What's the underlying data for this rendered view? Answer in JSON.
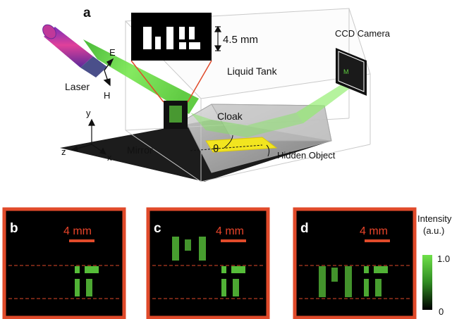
{
  "panel_a": {
    "letter": "a",
    "inset_dimension": "4.5 mm",
    "labels": {
      "camera": "CCD Camera",
      "tank": "Liquid Tank",
      "laser": "Laser",
      "e_field": "E",
      "h_field": "H",
      "cloak": "Cloak",
      "mirror": "Mirror",
      "theta": "θ",
      "hidden_object": "Hidden Object",
      "axis_y": "y",
      "axis_z": "z",
      "axis_x": "x"
    },
    "colors": {
      "beam": "#5fd13f",
      "laser_body": "#c0389a",
      "hidden_object": "#f2e51f",
      "mirror": "#1c1c1c",
      "panel_frame": "#e04a2a"
    }
  },
  "panels": [
    {
      "letter": "b",
      "scale_label": "4 mm"
    },
    {
      "letter": "c",
      "scale_label": "4 mm"
    },
    {
      "letter": "d",
      "scale_label": "4 mm"
    }
  ],
  "colorbar": {
    "title_line1": "Intensity",
    "title_line2": "(a.u.)",
    "max_label": "1.0",
    "min_label": "0",
    "top_color": "#6fe04a",
    "bottom_color": "#000000"
  }
}
